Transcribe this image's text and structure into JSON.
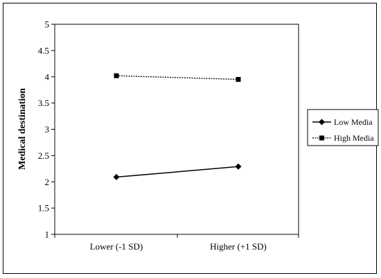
{
  "chart_data": {
    "type": "line",
    "title": "",
    "xlabel": "",
    "ylabel": "Medical destination",
    "categories": [
      "Lower (-1 SD)",
      "Higher (+1 SD)"
    ],
    "ylim": [
      1,
      5
    ],
    "yticks": [
      "1",
      "1.5",
      "2",
      "2.5",
      "3",
      "3.5",
      "4",
      "4.5",
      "5"
    ],
    "grid": false,
    "legend_position": "right",
    "series": [
      {
        "name": "Low Media",
        "values": [
          2.09,
          2.29
        ],
        "marker": "diamond",
        "line": "solid",
        "color": "#000000"
      },
      {
        "name": "High Media",
        "values": [
          4.02,
          3.95
        ],
        "marker": "square",
        "line": "dotted",
        "color": "#000000"
      }
    ]
  }
}
